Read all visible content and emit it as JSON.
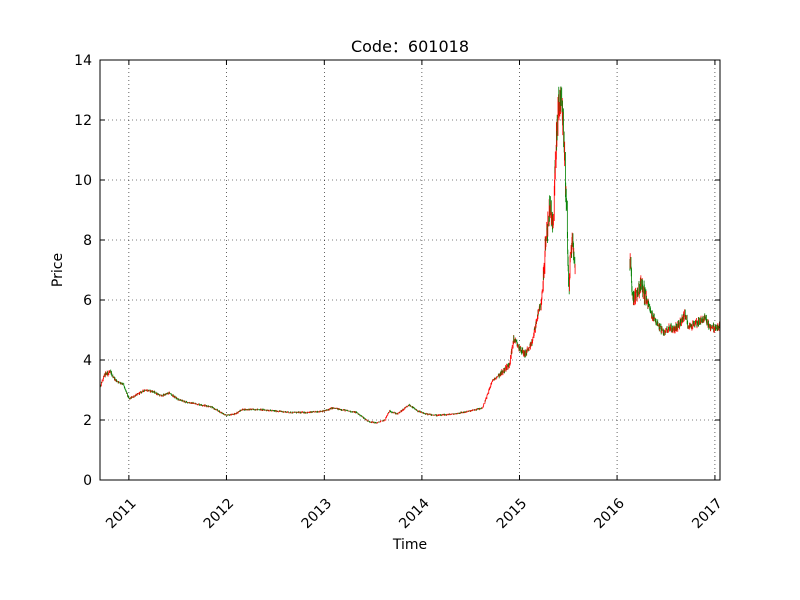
{
  "chart_data": {
    "type": "candlestick",
    "title": "Code：601018",
    "xlabel": "Time",
    "ylabel": "Price",
    "ylim": [
      0,
      14
    ],
    "xlim": [
      "2010-09-15",
      "2017-01-20"
    ],
    "yticks": [
      0,
      2,
      4,
      6,
      8,
      10,
      12,
      14
    ],
    "xticks": [
      "2011",
      "2012",
      "2013",
      "2014",
      "2015",
      "2016",
      "2017"
    ],
    "grid": true,
    "up_color": "#ff0000",
    "down_color": "#008000",
    "close_path": [
      [
        "2010-09-15",
        3.1
      ],
      [
        "2010-10-01",
        3.5
      ],
      [
        "2010-10-20",
        3.6
      ],
      [
        "2010-11-15",
        3.3
      ],
      [
        "2010-12-10",
        3.2
      ],
      [
        "2011-01-01",
        2.7
      ],
      [
        "2011-02-01",
        2.85
      ],
      [
        "2011-03-01",
        3.0
      ],
      [
        "2011-04-01",
        2.95
      ],
      [
        "2011-05-01",
        2.8
      ],
      [
        "2011-06-01",
        2.9
      ],
      [
        "2011-07-01",
        2.7
      ],
      [
        "2011-08-01",
        2.6
      ],
      [
        "2011-09-01",
        2.55
      ],
      [
        "2011-10-01",
        2.5
      ],
      [
        "2011-11-01",
        2.45
      ],
      [
        "2011-12-01",
        2.3
      ],
      [
        "2012-01-01",
        2.15
      ],
      [
        "2012-02-01",
        2.2
      ],
      [
        "2012-03-01",
        2.35
      ],
      [
        "2012-05-01",
        2.35
      ],
      [
        "2012-07-01",
        2.3
      ],
      [
        "2012-09-01",
        2.25
      ],
      [
        "2012-11-01",
        2.25
      ],
      [
        "2013-01-01",
        2.3
      ],
      [
        "2013-02-01",
        2.4
      ],
      [
        "2013-04-01",
        2.3
      ],
      [
        "2013-05-01",
        2.25
      ],
      [
        "2013-06-15",
        1.95
      ],
      [
        "2013-07-15",
        1.9
      ],
      [
        "2013-08-15",
        2.0
      ],
      [
        "2013-09-01",
        2.3
      ],
      [
        "2013-10-01",
        2.2
      ],
      [
        "2013-11-15",
        2.5
      ],
      [
        "2013-12-15",
        2.3
      ],
      [
        "2014-01-15",
        2.2
      ],
      [
        "2014-03-01",
        2.15
      ],
      [
        "2014-05-01",
        2.2
      ],
      [
        "2014-07-01",
        2.3
      ],
      [
        "2014-08-15",
        2.4
      ],
      [
        "2014-09-01",
        2.8
      ],
      [
        "2014-09-20",
        3.3
      ],
      [
        "2014-10-15",
        3.5
      ],
      [
        "2014-11-10",
        3.7
      ],
      [
        "2014-11-25",
        3.9
      ],
      [
        "2014-12-10",
        4.7
      ],
      [
        "2015-01-01",
        4.4
      ],
      [
        "2015-01-20",
        4.2
      ],
      [
        "2015-02-15",
        4.5
      ],
      [
        "2015-03-10",
        5.5
      ],
      [
        "2015-03-25",
        6.0
      ],
      [
        "2015-04-05",
        7.5
      ],
      [
        "2015-04-15",
        8.3
      ],
      [
        "2015-04-25",
        9.2
      ],
      [
        "2015-05-05",
        8.4
      ],
      [
        "2015-05-15",
        10.5
      ],
      [
        "2015-05-25",
        12.4
      ],
      [
        "2015-06-05",
        12.9
      ],
      [
        "2015-06-12",
        12.0
      ],
      [
        "2015-06-20",
        10.5
      ],
      [
        "2015-06-28",
        8.5
      ],
      [
        "2015-07-05",
        6.0
      ],
      [
        "2015-07-10",
        7.5
      ],
      [
        "2015-07-18",
        8.0
      ],
      [
        "2015-07-25",
        7.2
      ],
      [
        "2016-02-20",
        7.3
      ],
      [
        "2016-02-28",
        6.0
      ],
      [
        "2016-03-10",
        6.2
      ],
      [
        "2016-04-01",
        6.5
      ],
      [
        "2016-04-20",
        6.0
      ],
      [
        "2016-05-10",
        5.5
      ],
      [
        "2016-06-01",
        5.2
      ],
      [
        "2016-06-20",
        4.9
      ],
      [
        "2016-07-15",
        5.1
      ],
      [
        "2016-08-01",
        5.0
      ],
      [
        "2016-08-20",
        5.2
      ],
      [
        "2016-09-10",
        5.5
      ],
      [
        "2016-09-25",
        5.1
      ],
      [
        "2016-10-15",
        5.2
      ],
      [
        "2016-11-05",
        5.3
      ],
      [
        "2016-11-25",
        5.4
      ],
      [
        "2016-12-15",
        5.1
      ],
      [
        "2017-01-05",
        5.05
      ],
      [
        "2017-01-20",
        5.15
      ]
    ],
    "gap": [
      "2015-07-28",
      "2016-02-18"
    ]
  }
}
